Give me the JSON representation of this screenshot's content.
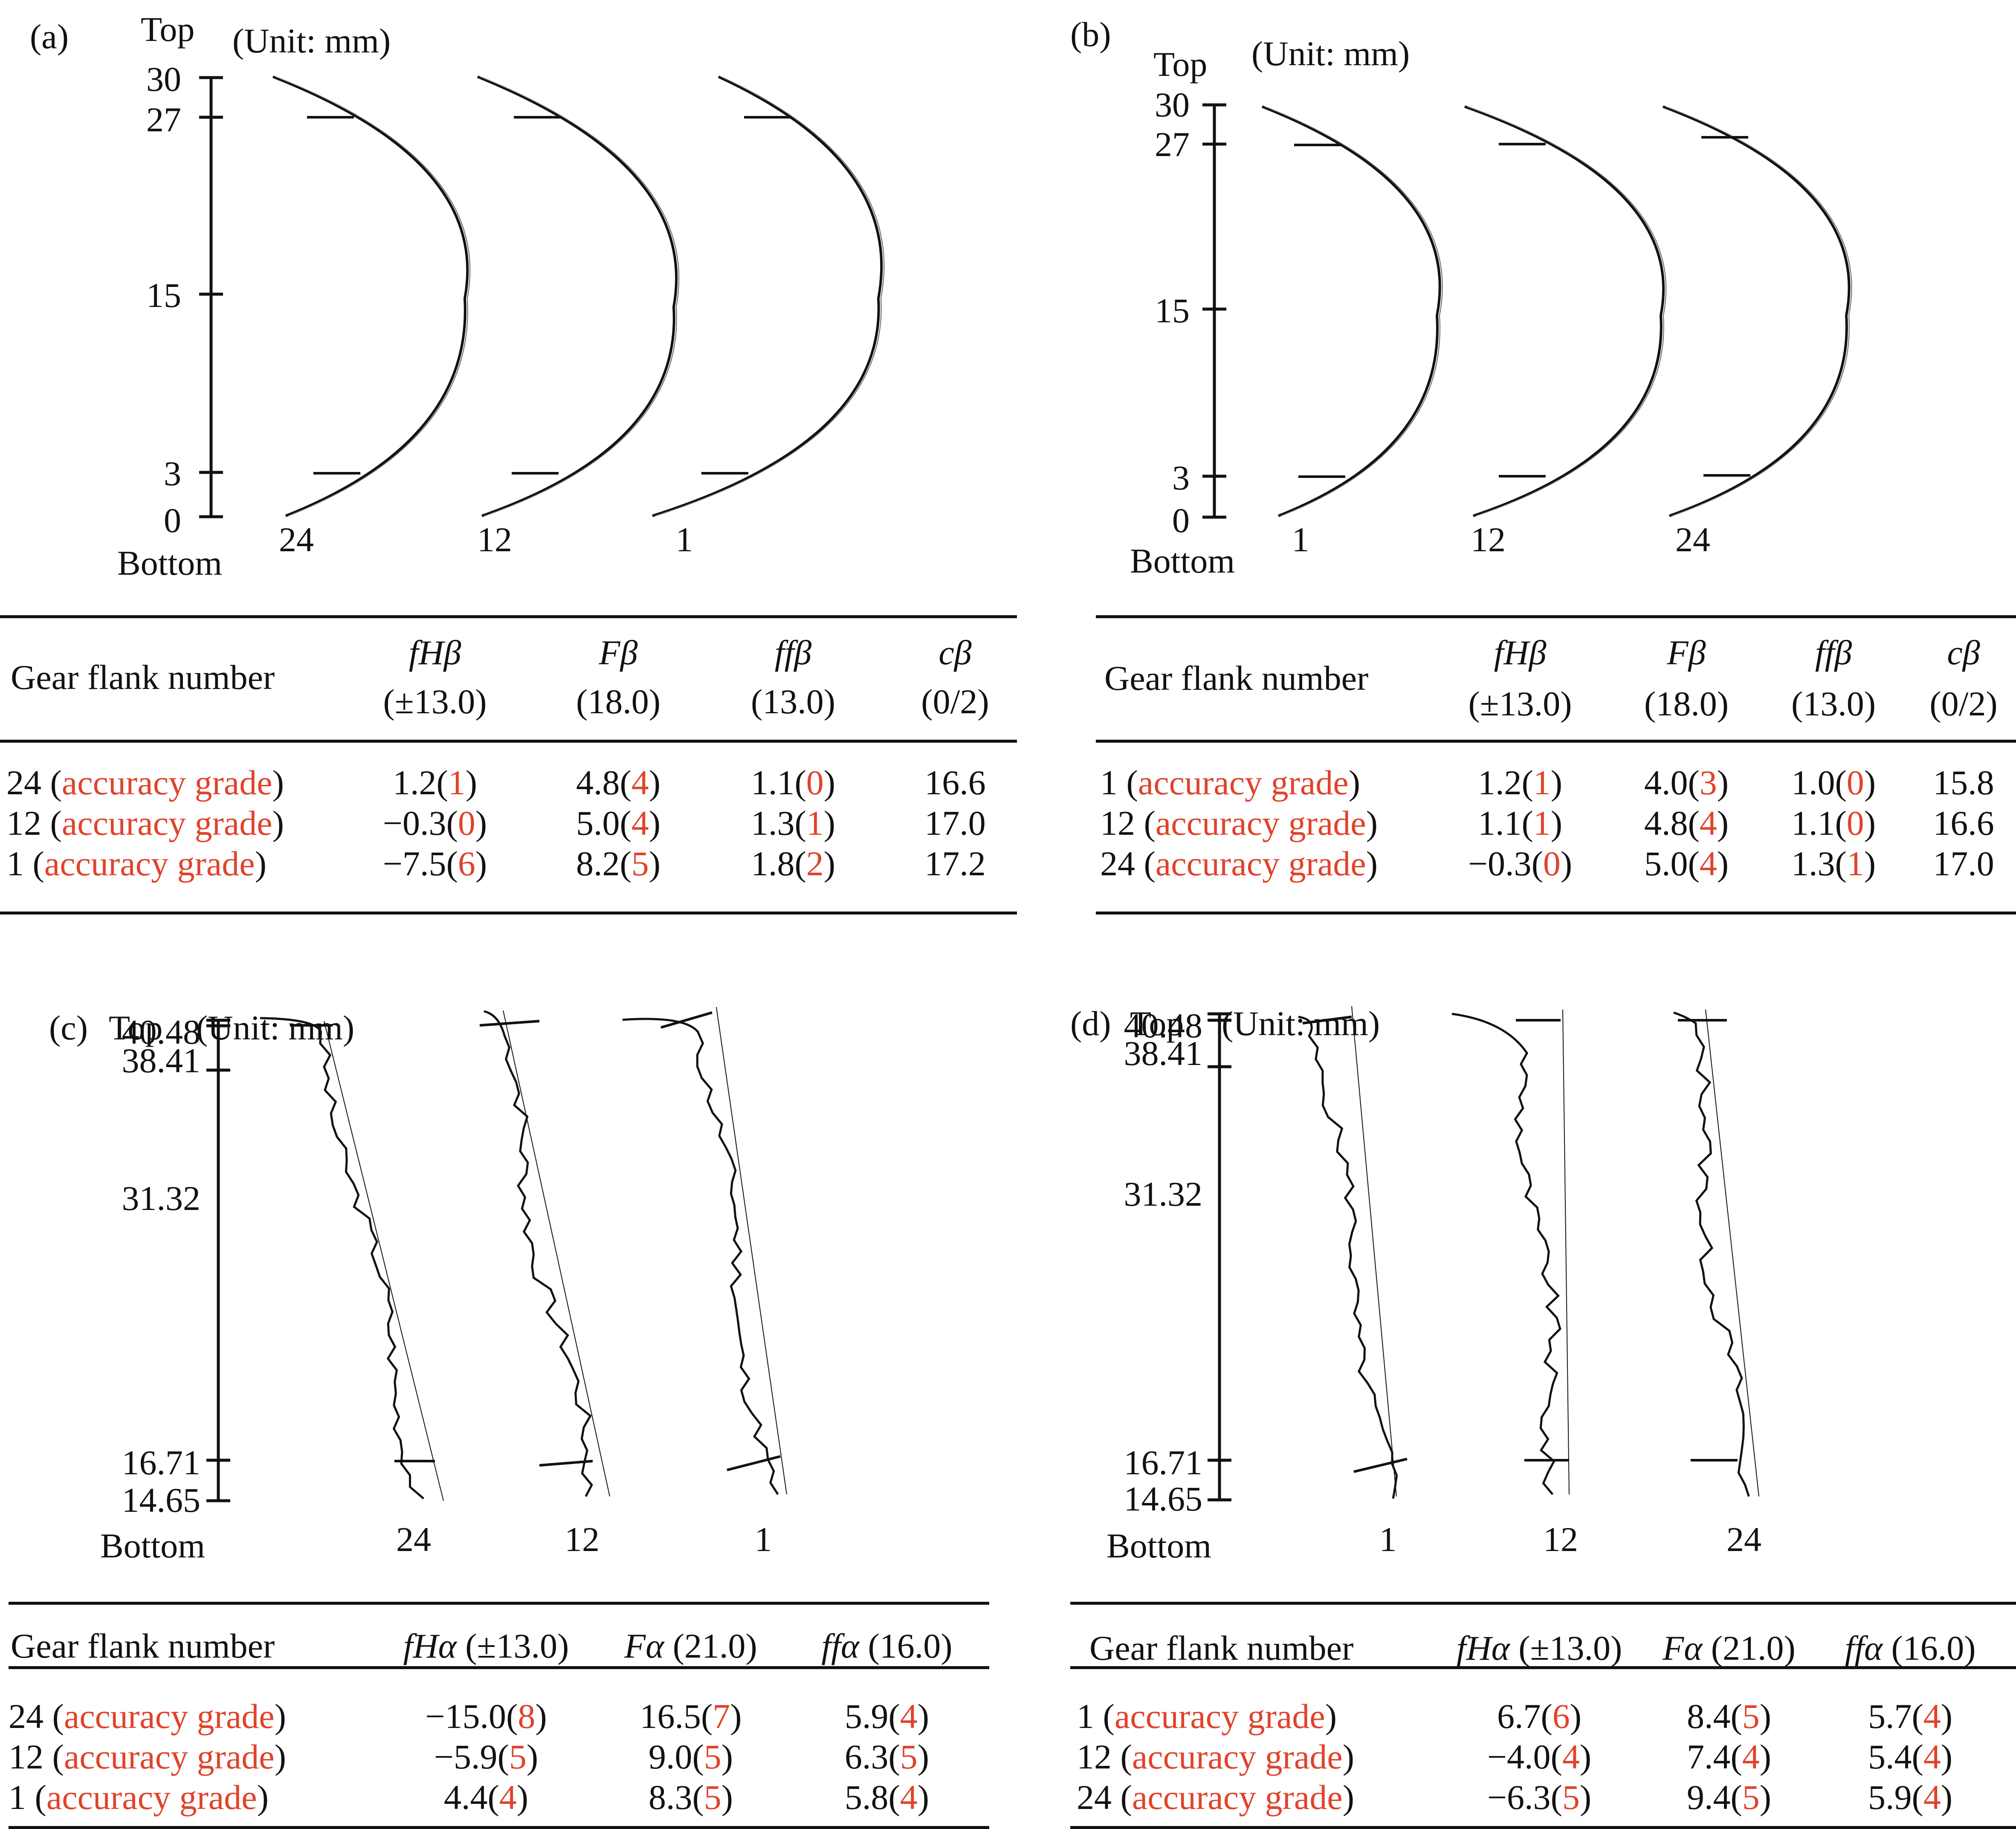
{
  "colors": {
    "text": "#111111",
    "accent_red": "#e0432b"
  },
  "panels": {
    "a": {
      "tag": "(a)",
      "top_label": "Top",
      "bottom_label": "Bottom",
      "unit": "(Unit: mm)",
      "axis_ticks": [
        "30",
        "27",
        "15",
        "3",
        "0"
      ],
      "flank_labels": [
        "24",
        "12",
        "1"
      ],
      "table": {
        "header_col0": "Gear flank number",
        "headers": [
          {
            "sym": "fHβ",
            "tol": "(±13.0)"
          },
          {
            "sym": "Fβ",
            "tol": "(18.0)"
          },
          {
            "sym": "ffβ",
            "tol": "(13.0)"
          },
          {
            "sym": "cβ",
            "tol": "(0/2)"
          }
        ],
        "rows": [
          {
            "flank": "24",
            "grade_label": "accuracy grade",
            "fH": "1.2",
            "fH_g": "1",
            "F": "4.8",
            "F_g": "4",
            "ff": "1.1",
            "ff_g": "0",
            "c": "16.6"
          },
          {
            "flank": "12",
            "grade_label": "accuracy grade",
            "fH": "−0.3",
            "fH_g": "0",
            "F": "5.0",
            "F_g": "4",
            "ff": "1.3",
            "ff_g": "1",
            "c": "17.0"
          },
          {
            "flank": "1",
            "grade_label": "accuracy grade",
            "fH": "−7.5",
            "fH_g": "6",
            "F": "8.2",
            "F_g": "5",
            "ff": "1.8",
            "ff_g": "2",
            "c": "17.2"
          }
        ]
      }
    },
    "b": {
      "tag": "(b)",
      "top_label": "Top",
      "bottom_label": "Bottom",
      "unit": "(Unit: mm)",
      "axis_ticks": [
        "30",
        "27",
        "15",
        "3",
        "0"
      ],
      "flank_labels": [
        "1",
        "12",
        "24"
      ],
      "table": {
        "header_col0": "Gear flank number",
        "headers": [
          {
            "sym": "fHβ",
            "tol": "(±13.0)"
          },
          {
            "sym": "Fβ",
            "tol": "(18.0)"
          },
          {
            "sym": "ffβ",
            "tol": "(13.0)"
          },
          {
            "sym": "cβ",
            "tol": "(0/2)"
          }
        ],
        "rows": [
          {
            "flank": "1",
            "grade_label": "accuracy grade",
            "fH": "1.2",
            "fH_g": "1",
            "F": "4.0",
            "F_g": "3",
            "ff": "1.0",
            "ff_g": "0",
            "c": "15.8"
          },
          {
            "flank": "12",
            "grade_label": "accuracy grade",
            "fH": "1.1",
            "fH_g": "1",
            "F": "4.8",
            "F_g": "4",
            "ff": "1.1",
            "ff_g": "0",
            "c": "16.6"
          },
          {
            "flank": "24",
            "grade_label": "accuracy grade",
            "fH": "−0.3",
            "fH_g": "0",
            "F": "5.0",
            "F_g": "4",
            "ff": "1.3",
            "ff_g": "1",
            "c": "17.0"
          }
        ]
      }
    },
    "c": {
      "tag": "(c)",
      "top_label": "Top",
      "bottom_label": "Bottom",
      "unit": "(Unit: mm)",
      "axis_ticks": [
        "40.48",
        "38.41",
        "31.32",
        "16.71",
        "14.65"
      ],
      "flank_labels": [
        "24",
        "12",
        "1"
      ],
      "table": {
        "header_col0": "Gear flank number",
        "headers": [
          {
            "sym": "fHα",
            "tol": "(±13.0)"
          },
          {
            "sym": "Fα",
            "tol": "(21.0)"
          },
          {
            "sym": "ffα",
            "tol": "(16.0)"
          }
        ],
        "rows": [
          {
            "flank": "24",
            "grade_label": "accuracy grade",
            "fH": "−15.0",
            "fH_g": "8",
            "F": "16.5",
            "F_g": "7",
            "ff": "5.9",
            "ff_g": "4"
          },
          {
            "flank": "12",
            "grade_label": "accuracy grade",
            "fH": "−5.9",
            "fH_g": "5",
            "F": "9.0",
            "F_g": "5",
            "ff": "6.3",
            "ff_g": "5"
          },
          {
            "flank": "1",
            "grade_label": "accuracy grade",
            "fH": "4.4",
            "fH_g": "4",
            "F": "8.3",
            "F_g": "5",
            "ff": "5.8",
            "ff_g": "4"
          }
        ]
      }
    },
    "d": {
      "tag": "(d)",
      "top_label": "Top",
      "bottom_label": "Bottom",
      "unit": "(Unit: mm)",
      "axis_ticks": [
        "40.48",
        "38.41",
        "31.32",
        "16.71",
        "14.65"
      ],
      "flank_labels": [
        "1",
        "12",
        "24"
      ],
      "table": {
        "header_col0": "Gear flank number",
        "headers": [
          {
            "sym": "fHα",
            "tol": "(±13.0)"
          },
          {
            "sym": "Fα",
            "tol": "(21.0)"
          },
          {
            "sym": "ffα",
            "tol": "(16.0)"
          }
        ],
        "rows": [
          {
            "flank": "1",
            "grade_label": "accuracy grade",
            "fH": "6.7",
            "fH_g": "6",
            "F": "8.4",
            "F_g": "5",
            "ff": "5.7",
            "ff_g": "4"
          },
          {
            "flank": "12",
            "grade_label": "accuracy grade",
            "fH": "−4.0",
            "fH_g": "4",
            "F": "7.4",
            "F_g": "4",
            "ff": "5.4",
            "ff_g": "4"
          },
          {
            "flank": "24",
            "grade_label": "accuracy grade",
            "fH": "−6.3",
            "fH_g": "5",
            "F": "9.4",
            "F_g": "5",
            "ff": "5.9",
            "ff_g": "4"
          }
        ]
      }
    }
  }
}
